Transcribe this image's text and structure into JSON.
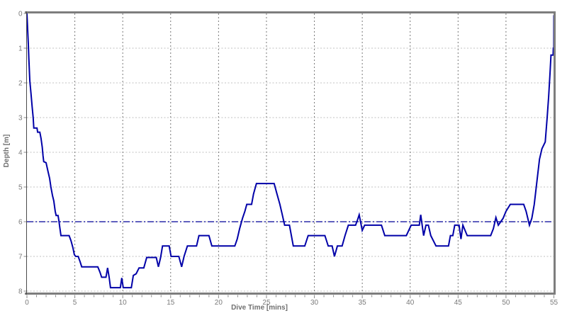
{
  "chart_data": {
    "type": "line",
    "title": "",
    "xlabel": "Dive Time [mins]",
    "ylabel": "Depth [m]",
    "xlim": [
      0,
      55
    ],
    "ylim": [
      0,
      8
    ],
    "y_inverted": true,
    "grid": "on",
    "legend": "none",
    "xticks": [
      0,
      5,
      10,
      15,
      20,
      25,
      30,
      35,
      40,
      45,
      50,
      55
    ],
    "x_minor_tick_step": 1,
    "yticks": [
      0,
      1,
      2,
      3,
      4,
      5,
      6,
      7,
      8
    ],
    "reference_lines": [
      {
        "name": "average-depth",
        "value": 6.0,
        "style": "dash-dot",
        "color": "#000099"
      }
    ],
    "series": [
      {
        "name": "dive-depth-profile",
        "color": "#0000A8",
        "points": [
          [
            0,
            0
          ],
          [
            0.08,
            0.5
          ],
          [
            0.15,
            0.9
          ],
          [
            0.2,
            1.3
          ],
          [
            0.3,
            1.95
          ],
          [
            0.42,
            2.3
          ],
          [
            0.55,
            2.7
          ],
          [
            0.65,
            3.0
          ],
          [
            0.72,
            3.3
          ],
          [
            1.05,
            3.3
          ],
          [
            1.12,
            3.42
          ],
          [
            1.35,
            3.42
          ],
          [
            1.47,
            3.6
          ],
          [
            1.6,
            3.85
          ],
          [
            1.68,
            4.1
          ],
          [
            1.75,
            4.27
          ],
          [
            2.0,
            4.3
          ],
          [
            2.2,
            4.55
          ],
          [
            2.37,
            4.75
          ],
          [
            2.5,
            5.0
          ],
          [
            2.67,
            5.25
          ],
          [
            2.8,
            5.4
          ],
          [
            2.95,
            5.7
          ],
          [
            3.05,
            5.82
          ],
          [
            3.25,
            5.82
          ],
          [
            3.35,
            6.0
          ],
          [
            3.45,
            6.2
          ],
          [
            3.55,
            6.4
          ],
          [
            4.4,
            6.4
          ],
          [
            4.6,
            6.55
          ],
          [
            4.8,
            6.75
          ],
          [
            4.95,
            6.95
          ],
          [
            5.1,
            7.0
          ],
          [
            5.35,
            7.0
          ],
          [
            5.55,
            7.15
          ],
          [
            5.72,
            7.3
          ],
          [
            7.4,
            7.3
          ],
          [
            7.62,
            7.45
          ],
          [
            7.8,
            7.6
          ],
          [
            8.25,
            7.6
          ],
          [
            8.42,
            7.33
          ],
          [
            8.58,
            7.6
          ],
          [
            8.72,
            7.9
          ],
          [
            9.75,
            7.9
          ],
          [
            9.9,
            7.62
          ],
          [
            10.05,
            7.9
          ],
          [
            10.9,
            7.9
          ],
          [
            11.1,
            7.55
          ],
          [
            11.4,
            7.5
          ],
          [
            11.7,
            7.33
          ],
          [
            12.2,
            7.33
          ],
          [
            12.5,
            7.03
          ],
          [
            13.5,
            7.03
          ],
          [
            13.72,
            7.3
          ],
          [
            13.95,
            7.03
          ],
          [
            14.15,
            6.7
          ],
          [
            14.85,
            6.7
          ],
          [
            15.05,
            7.0
          ],
          [
            15.85,
            7.0
          ],
          [
            16.15,
            7.3
          ],
          [
            16.4,
            7.0
          ],
          [
            16.75,
            6.7
          ],
          [
            17.7,
            6.7
          ],
          [
            17.95,
            6.4
          ],
          [
            19.0,
            6.4
          ],
          [
            19.3,
            6.7
          ],
          [
            21.7,
            6.7
          ],
          [
            21.95,
            6.5
          ],
          [
            22.2,
            6.2
          ],
          [
            22.5,
            5.9
          ],
          [
            22.75,
            5.7
          ],
          [
            22.95,
            5.5
          ],
          [
            23.45,
            5.5
          ],
          [
            23.65,
            5.2
          ],
          [
            23.95,
            4.9
          ],
          [
            25.8,
            4.9
          ],
          [
            26.1,
            5.2
          ],
          [
            26.4,
            5.5
          ],
          [
            26.65,
            5.8
          ],
          [
            26.9,
            6.1
          ],
          [
            27.4,
            6.1
          ],
          [
            27.6,
            6.4
          ],
          [
            27.8,
            6.7
          ],
          [
            29.0,
            6.7
          ],
          [
            29.35,
            6.4
          ],
          [
            31.1,
            6.4
          ],
          [
            31.45,
            6.7
          ],
          [
            31.85,
            6.7
          ],
          [
            32.1,
            7.0
          ],
          [
            32.4,
            6.7
          ],
          [
            32.9,
            6.7
          ],
          [
            33.2,
            6.4
          ],
          [
            33.55,
            6.1
          ],
          [
            34.3,
            6.1
          ],
          [
            34.5,
            5.95
          ],
          [
            34.68,
            5.8
          ],
          [
            35.0,
            6.25
          ],
          [
            35.25,
            6.1
          ],
          [
            37.0,
            6.1
          ],
          [
            37.35,
            6.4
          ],
          [
            39.6,
            6.4
          ],
          [
            39.85,
            6.25
          ],
          [
            40.1,
            6.1
          ],
          [
            40.95,
            6.1
          ],
          [
            41.1,
            5.8
          ],
          [
            41.4,
            6.4
          ],
          [
            41.65,
            6.1
          ],
          [
            41.9,
            6.1
          ],
          [
            42.15,
            6.4
          ],
          [
            42.7,
            6.7
          ],
          [
            44.0,
            6.7
          ],
          [
            44.2,
            6.4
          ],
          [
            44.45,
            6.4
          ],
          [
            44.65,
            6.1
          ],
          [
            45.1,
            6.1
          ],
          [
            45.3,
            6.5
          ],
          [
            45.5,
            6.1
          ],
          [
            45.95,
            6.4
          ],
          [
            48.4,
            6.4
          ],
          [
            48.68,
            6.2
          ],
          [
            48.95,
            5.88
          ],
          [
            49.2,
            6.1
          ],
          [
            49.45,
            6.0
          ],
          [
            49.7,
            5.9
          ],
          [
            50.0,
            5.7
          ],
          [
            50.45,
            5.5
          ],
          [
            51.85,
            5.5
          ],
          [
            52.1,
            5.7
          ],
          [
            52.45,
            6.1
          ],
          [
            52.7,
            5.9
          ],
          [
            52.95,
            5.5
          ],
          [
            53.2,
            4.9
          ],
          [
            53.5,
            4.2
          ],
          [
            53.75,
            3.9
          ],
          [
            54.1,
            3.7
          ],
          [
            54.3,
            3.0
          ],
          [
            54.45,
            2.4
          ],
          [
            54.6,
            1.7
          ],
          [
            54.7,
            1.2
          ],
          [
            54.92,
            1.2
          ],
          [
            54.94,
            1.0
          ],
          [
            54.99,
            1.0
          ],
          [
            55,
            0.05
          ]
        ]
      }
    ]
  },
  "colors": {
    "background": "#ffffff",
    "line": "#0000A8",
    "average_line": "#000099",
    "grid_horizontal": "#c0c0c0",
    "grid_vertical": "#787878",
    "border": "#7d7d7d",
    "left_axis": "#4a4a4a",
    "tick": "#8a8a8a",
    "tick_label": "#7a7a7a",
    "axis_title": "#707070"
  }
}
